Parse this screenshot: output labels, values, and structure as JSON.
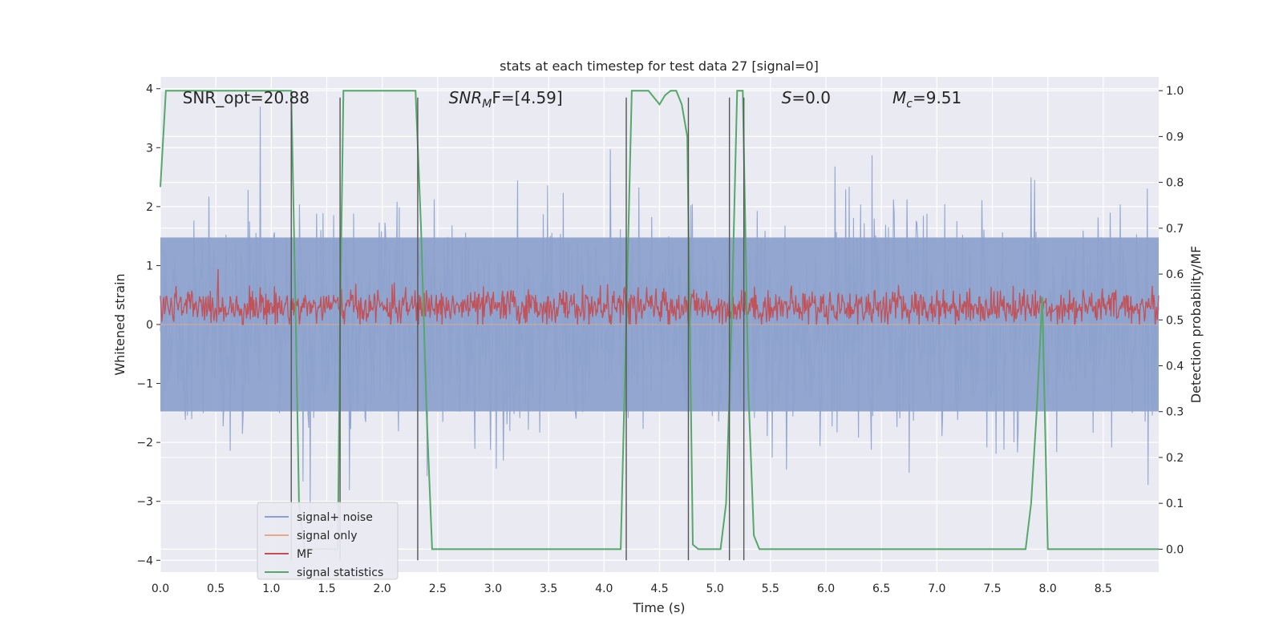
{
  "chart_data": {
    "type": "line",
    "title": "stats at each timestep for test data 27 [signal=0]",
    "xlabel": "Time (s)",
    "ylabel_left": "Whitened strain",
    "ylabel_right": "Detection probability/MF",
    "xlim": [
      0,
      9.0
    ],
    "ylim_left": [
      -4.2,
      4.2
    ],
    "ylim_right": [
      -0.05,
      1.03
    ],
    "x_ticks": [
      0.0,
      0.5,
      1.0,
      1.5,
      2.0,
      2.5,
      3.0,
      3.5,
      4.0,
      4.5,
      5.0,
      5.5,
      6.0,
      6.5,
      7.0,
      7.5,
      8.0,
      8.5
    ],
    "x_tick_labels": [
      "0.0",
      "0.5",
      "1.0",
      "1.5",
      "2.0",
      "2.5",
      "3.0",
      "3.5",
      "4.0",
      "4.5",
      "5.0",
      "5.5",
      "6.0",
      "6.5",
      "7.0",
      "7.5",
      "8.0",
      "8.5"
    ],
    "y_left_ticks": [
      -4,
      -3,
      -2,
      -1,
      0,
      1,
      2,
      3,
      4
    ],
    "y_left_tick_labels": [
      "−4",
      "−3",
      "−2",
      "−1",
      "0",
      "1",
      "2",
      "3",
      "4"
    ],
    "y_right_ticks": [
      0.0,
      0.1,
      0.2,
      0.3,
      0.4,
      0.5,
      0.6,
      0.7,
      0.8,
      0.9,
      1.0
    ],
    "y_right_tick_labels": [
      "0.0",
      "0.1",
      "0.2",
      "0.3",
      "0.4",
      "0.5",
      "0.6",
      "0.7",
      "0.8",
      "0.9",
      "1.0"
    ],
    "annotations": [
      {
        "base": "SNR_opt=20.88",
        "sub": "",
        "rest": "",
        "italic": false,
        "x": 0.2
      },
      {
        "base": "SNR",
        "sub": "M",
        "rest": "F=[4.59]",
        "italic": true,
        "x": 2.6
      },
      {
        "base": "S",
        "sub": "",
        "rest": "=0.0",
        "italic": true,
        "x": 5.6
      },
      {
        "base": "M",
        "sub": "c",
        "rest": "=9.51",
        "italic": true,
        "x": 6.6
      }
    ],
    "annotation_y": 3.85,
    "legend": {
      "placement": "lower-left",
      "entries": [
        {
          "label": "signal+ noise",
          "color": "#8da2cc"
        },
        {
          "label": "signal only",
          "color": "#e8a98a"
        },
        {
          "label": "MF",
          "color": "#c44e52"
        },
        {
          "label": "signal statistics",
          "color": "#55a868"
        }
      ]
    },
    "grid": true,
    "background": "#eaeaf2",
    "series": [
      {
        "name": "signal+ noise",
        "axis": "left",
        "color": "#8da2cc",
        "style": "dense-noise",
        "envelope_typical": 1.8,
        "peak_max": 3.9,
        "peak_min": -3.9
      },
      {
        "name": "signal only",
        "axis": "left",
        "color": "#e8a98a",
        "style": "flat",
        "values": 0
      },
      {
        "name": "MF",
        "axis": "left",
        "color": "#c44e52",
        "style": "dense-noise",
        "center": 0.3,
        "envelope_typical": 0.3,
        "peak_max": 1.0,
        "peak_min": 0.0
      },
      {
        "name": "signal statistics",
        "axis": "right",
        "color": "#55a868",
        "x": [
          0.0,
          0.05,
          0.1,
          0.2,
          0.5,
          1.0,
          1.18,
          1.22,
          1.25,
          1.3,
          1.35,
          1.4,
          1.45,
          1.5,
          1.55,
          1.6,
          1.62,
          1.65,
          1.7,
          2.0,
          2.3,
          2.35,
          2.4,
          2.45,
          2.5,
          3.0,
          3.5,
          4.0,
          4.1,
          4.15,
          4.2,
          4.25,
          4.3,
          4.4,
          4.5,
          4.55,
          4.6,
          4.65,
          4.7,
          4.75,
          4.8,
          4.85,
          4.9,
          5.0,
          5.05,
          5.1,
          5.15,
          5.2,
          5.25,
          5.3,
          5.35,
          5.4,
          5.5,
          6.0,
          6.5,
          7.0,
          7.5,
          7.8,
          7.85,
          7.9,
          7.95,
          8.0,
          8.05,
          8.1,
          8.5,
          9.0
        ],
        "values": [
          0.79,
          1.0,
          1.0,
          1.0,
          1.0,
          1.0,
          1.0,
          0.5,
          0.1,
          0.0,
          0.0,
          0.0,
          0.0,
          0.0,
          0.0,
          0.0,
          0.5,
          1.0,
          1.0,
          1.0,
          1.0,
          0.7,
          0.3,
          0.0,
          0.0,
          0.0,
          0.0,
          0.0,
          0.0,
          0.0,
          0.5,
          1.0,
          1.0,
          1.0,
          0.97,
          0.99,
          1.0,
          1.0,
          0.97,
          0.9,
          0.01,
          0.0,
          0.0,
          0.0,
          0.0,
          0.1,
          0.5,
          1.0,
          1.0,
          0.35,
          0.03,
          0.0,
          0.0,
          0.0,
          0.0,
          0.0,
          0.0,
          0.0,
          0.1,
          0.3,
          0.55,
          0.0,
          0.0,
          0.0,
          0.0,
          0.0
        ]
      }
    ],
    "vertical_lines": {
      "color": "#555555",
      "x": [
        1.18,
        1.62,
        2.32,
        4.2,
        4.76,
        5.13,
        5.26
      ],
      "y_range": [
        -4.0,
        3.85
      ]
    }
  }
}
